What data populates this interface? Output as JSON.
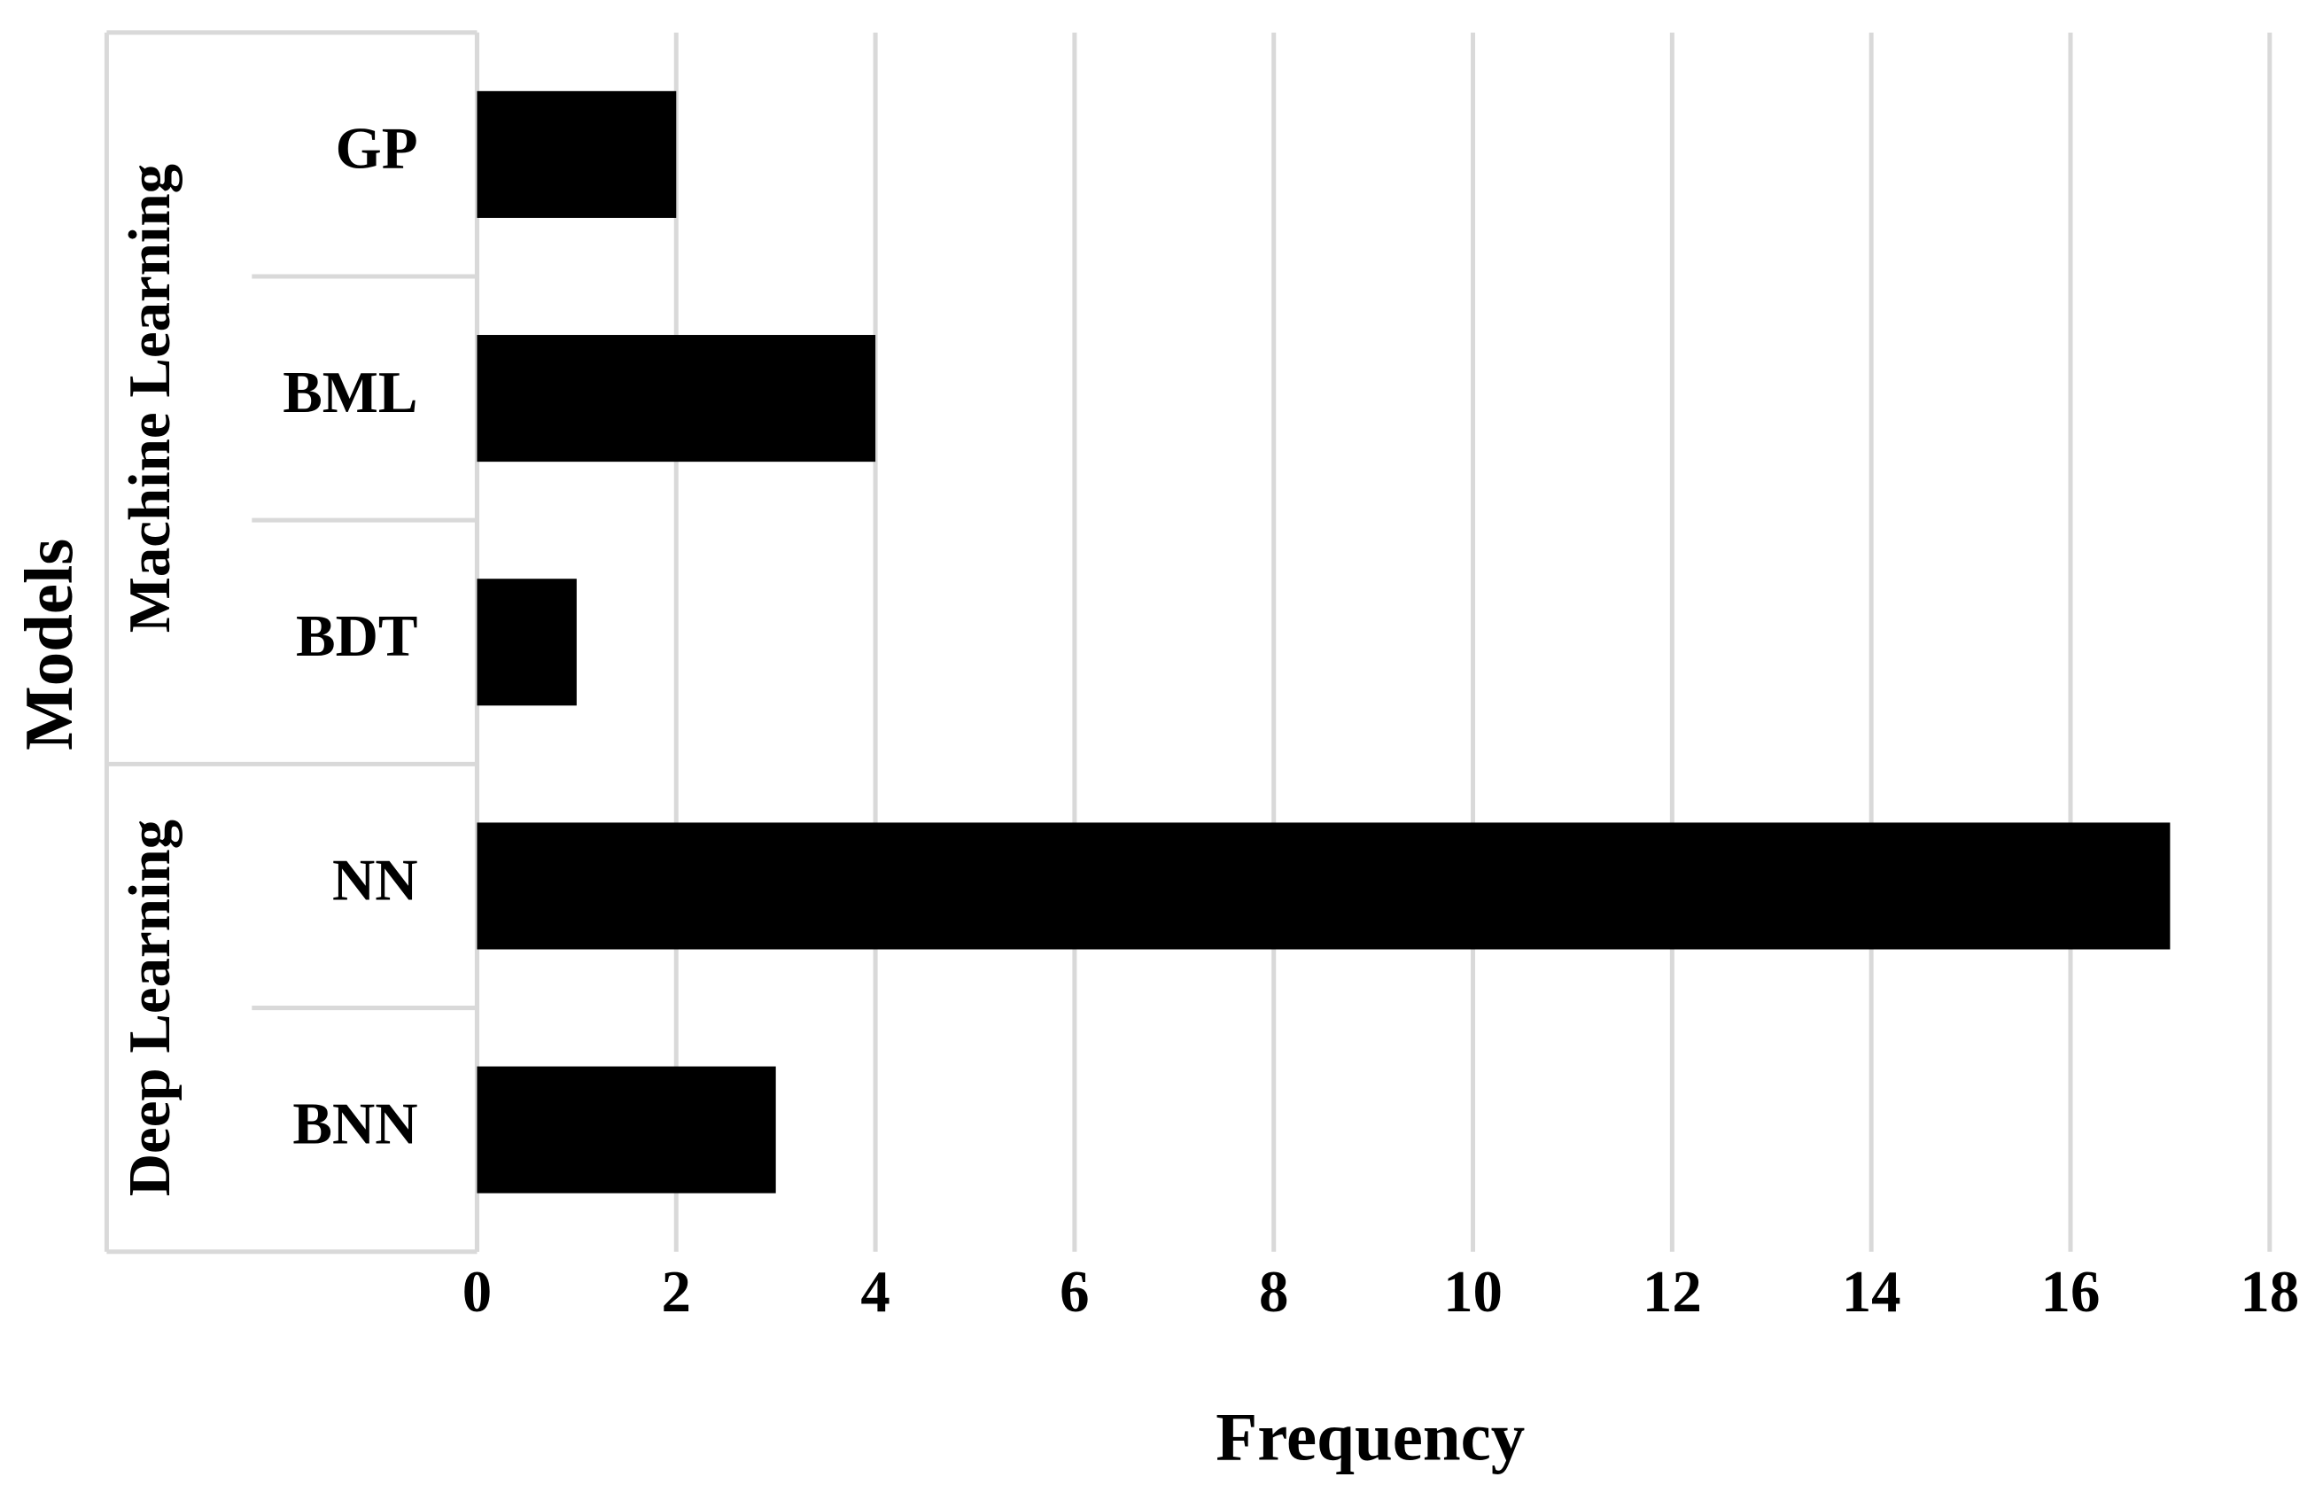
{
  "chart_data": {
    "type": "bar",
    "orientation": "horizontal",
    "color": "#000000",
    "x_label": "Frequency",
    "y_label": "Models",
    "groups": [
      {
        "name": "Machine Learning",
        "categories": [
          "GP",
          "BML",
          "BDT"
        ],
        "values": [
          2,
          4,
          1
        ]
      },
      {
        "name": "Deep Learning",
        "categories": [
          "NN",
          "BNN"
        ],
        "values": [
          17,
          3
        ]
      }
    ],
    "xlim": [
      0,
      18
    ],
    "xticks": [
      0,
      2,
      4,
      6,
      8,
      10,
      12,
      14,
      16,
      18
    ],
    "grid": true
  }
}
